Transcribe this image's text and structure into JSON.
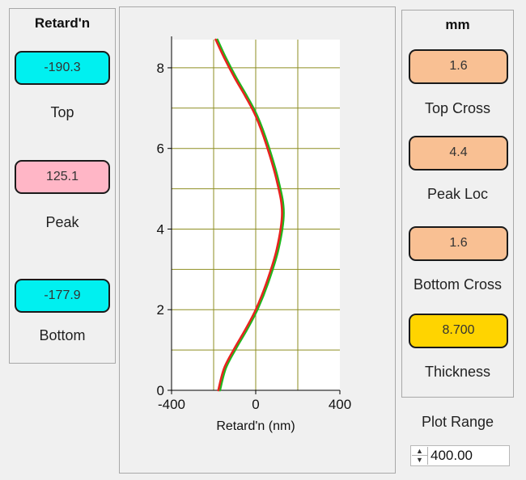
{
  "left_panel": {
    "title": "Retard'n",
    "items": [
      {
        "label": "Top",
        "value": "-190.3",
        "color": "#00f0f0"
      },
      {
        "label": "Peak",
        "value": "125.1",
        "color": "#ffb6c6"
      },
      {
        "label": "Bottom",
        "value": "-177.9",
        "color": "#00f0f0"
      }
    ]
  },
  "right_panel": {
    "title": "mm",
    "items": [
      {
        "label": "Top Cross",
        "value": "1.6",
        "color": "#f9c093"
      },
      {
        "label": "Peak Loc",
        "value": "4.4",
        "color": "#f9c093"
      },
      {
        "label": "Bottom Cross",
        "value": "1.6",
        "color": "#f9c093"
      },
      {
        "label": "Thickness",
        "value": "8.700",
        "color": "#ffd400"
      }
    ]
  },
  "plot_range": {
    "label": "Plot Range",
    "value": "400.00"
  },
  "chart_data": {
    "type": "line",
    "xlabel": "Retard'n (nm)",
    "ylabel": "",
    "xlim": [
      -400,
      400
    ],
    "ylim": [
      0,
      8.7
    ],
    "x_ticks": [
      -400,
      0,
      400
    ],
    "y_ticks": [
      0,
      2,
      4,
      6,
      8
    ],
    "grid": true,
    "series": [
      {
        "color": "#e8231f",
        "x": [
          -190.3,
          -150,
          -100,
          -50,
          0,
          50,
          100,
          125.1,
          100,
          50,
          0,
          -50,
          -100,
          -150,
          -177.9
        ],
        "y": [
          8.7,
          8.25,
          7.75,
          7.3,
          6.8,
          6.1,
          5.2,
          4.4,
          3.5,
          2.65,
          2.0,
          1.5,
          1.05,
          0.55,
          0.0
        ]
      },
      {
        "color": "#1db81d",
        "x": [
          -182,
          -142,
          -92,
          -42,
          8,
          58,
          108,
          133,
          108,
          58,
          8,
          -42,
          -92,
          -142,
          -170
        ],
        "y": [
          8.7,
          8.25,
          7.75,
          7.3,
          6.8,
          6.1,
          5.2,
          4.4,
          3.5,
          2.65,
          2.0,
          1.5,
          1.05,
          0.55,
          0.0
        ]
      }
    ]
  }
}
